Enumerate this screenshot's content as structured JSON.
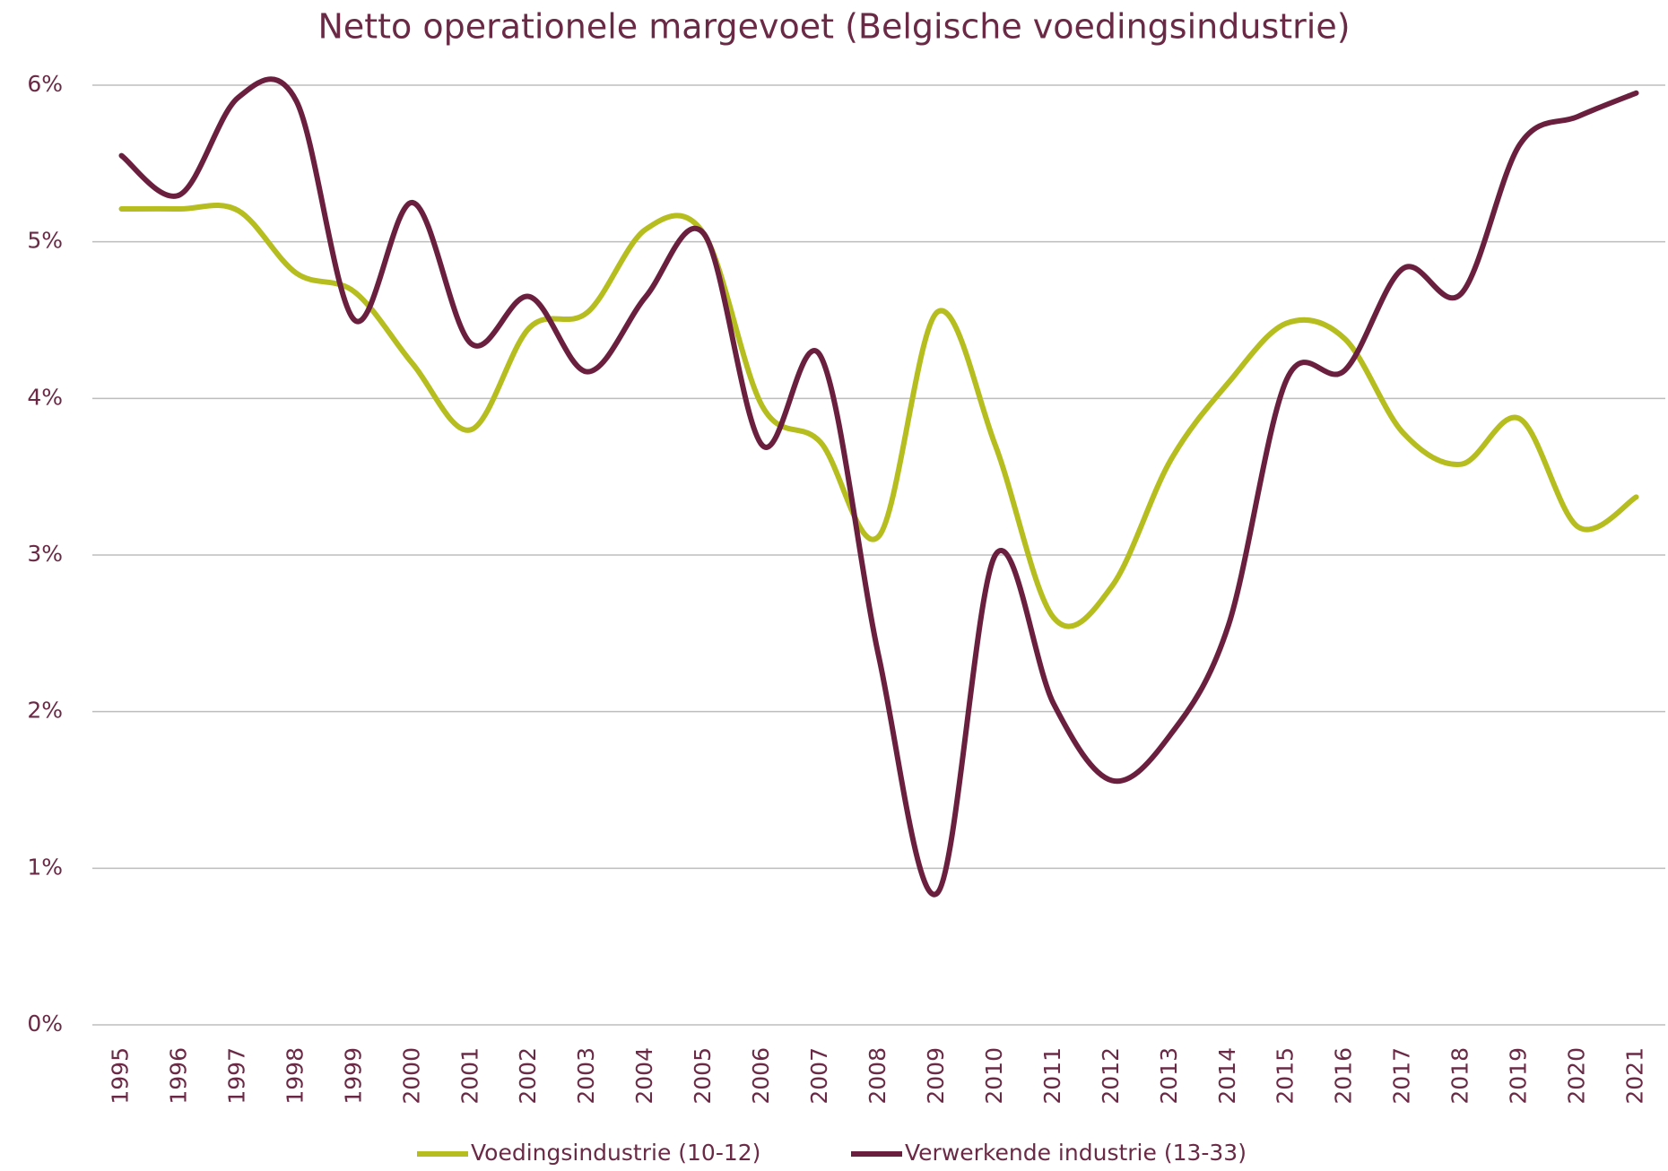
{
  "chart_data": {
    "type": "line",
    "title": "Netto operationele margevoet (Belgische voedingsindustrie)",
    "categories": [
      "1995",
      "1996",
      "1997",
      "1998",
      "1999",
      "2000",
      "2001",
      "2002",
      "2003",
      "2004",
      "2005",
      "2006",
      "2007",
      "2008",
      "2009",
      "2010",
      "2011",
      "2012",
      "2013",
      "2014",
      "2015",
      "2016",
      "2017",
      "2018",
      "2019",
      "2020",
      "2021"
    ],
    "series": [
      {
        "name": "Voedingsindustrie (10-12)",
        "color": "#b5bd1f",
        "values": [
          5.21,
          5.21,
          5.2,
          4.8,
          4.68,
          4.22,
          3.8,
          4.45,
          4.55,
          5.08,
          5.05,
          3.95,
          3.72,
          3.12,
          4.55,
          3.7,
          2.6,
          2.8,
          3.6,
          4.1,
          4.48,
          4.38,
          3.78,
          3.58,
          3.87,
          3.18,
          3.37
        ]
      },
      {
        "name": "Verwerkende industrie (13-33)",
        "color": "#6a1f3f",
        "values": [
          5.55,
          5.3,
          5.92,
          5.9,
          4.5,
          5.25,
          4.35,
          4.65,
          4.17,
          4.65,
          5.05,
          3.7,
          4.27,
          2.35,
          0.84,
          3.0,
          2.05,
          1.56,
          1.85,
          2.55,
          4.12,
          4.18,
          4.83,
          4.67,
          5.62,
          5.8,
          5.95
        ]
      }
    ],
    "ylim": [
      0,
      6
    ],
    "yticks": [
      {
        "value": 0,
        "label": "0%"
      },
      {
        "value": 1,
        "label": "1%"
      },
      {
        "value": 2,
        "label": "2%"
      },
      {
        "value": 3,
        "label": "3%"
      },
      {
        "value": 4,
        "label": "4%"
      },
      {
        "value": 5,
        "label": "5%"
      },
      {
        "value": 6,
        "label": "6%"
      }
    ],
    "grid": true,
    "legend": "bottom"
  }
}
